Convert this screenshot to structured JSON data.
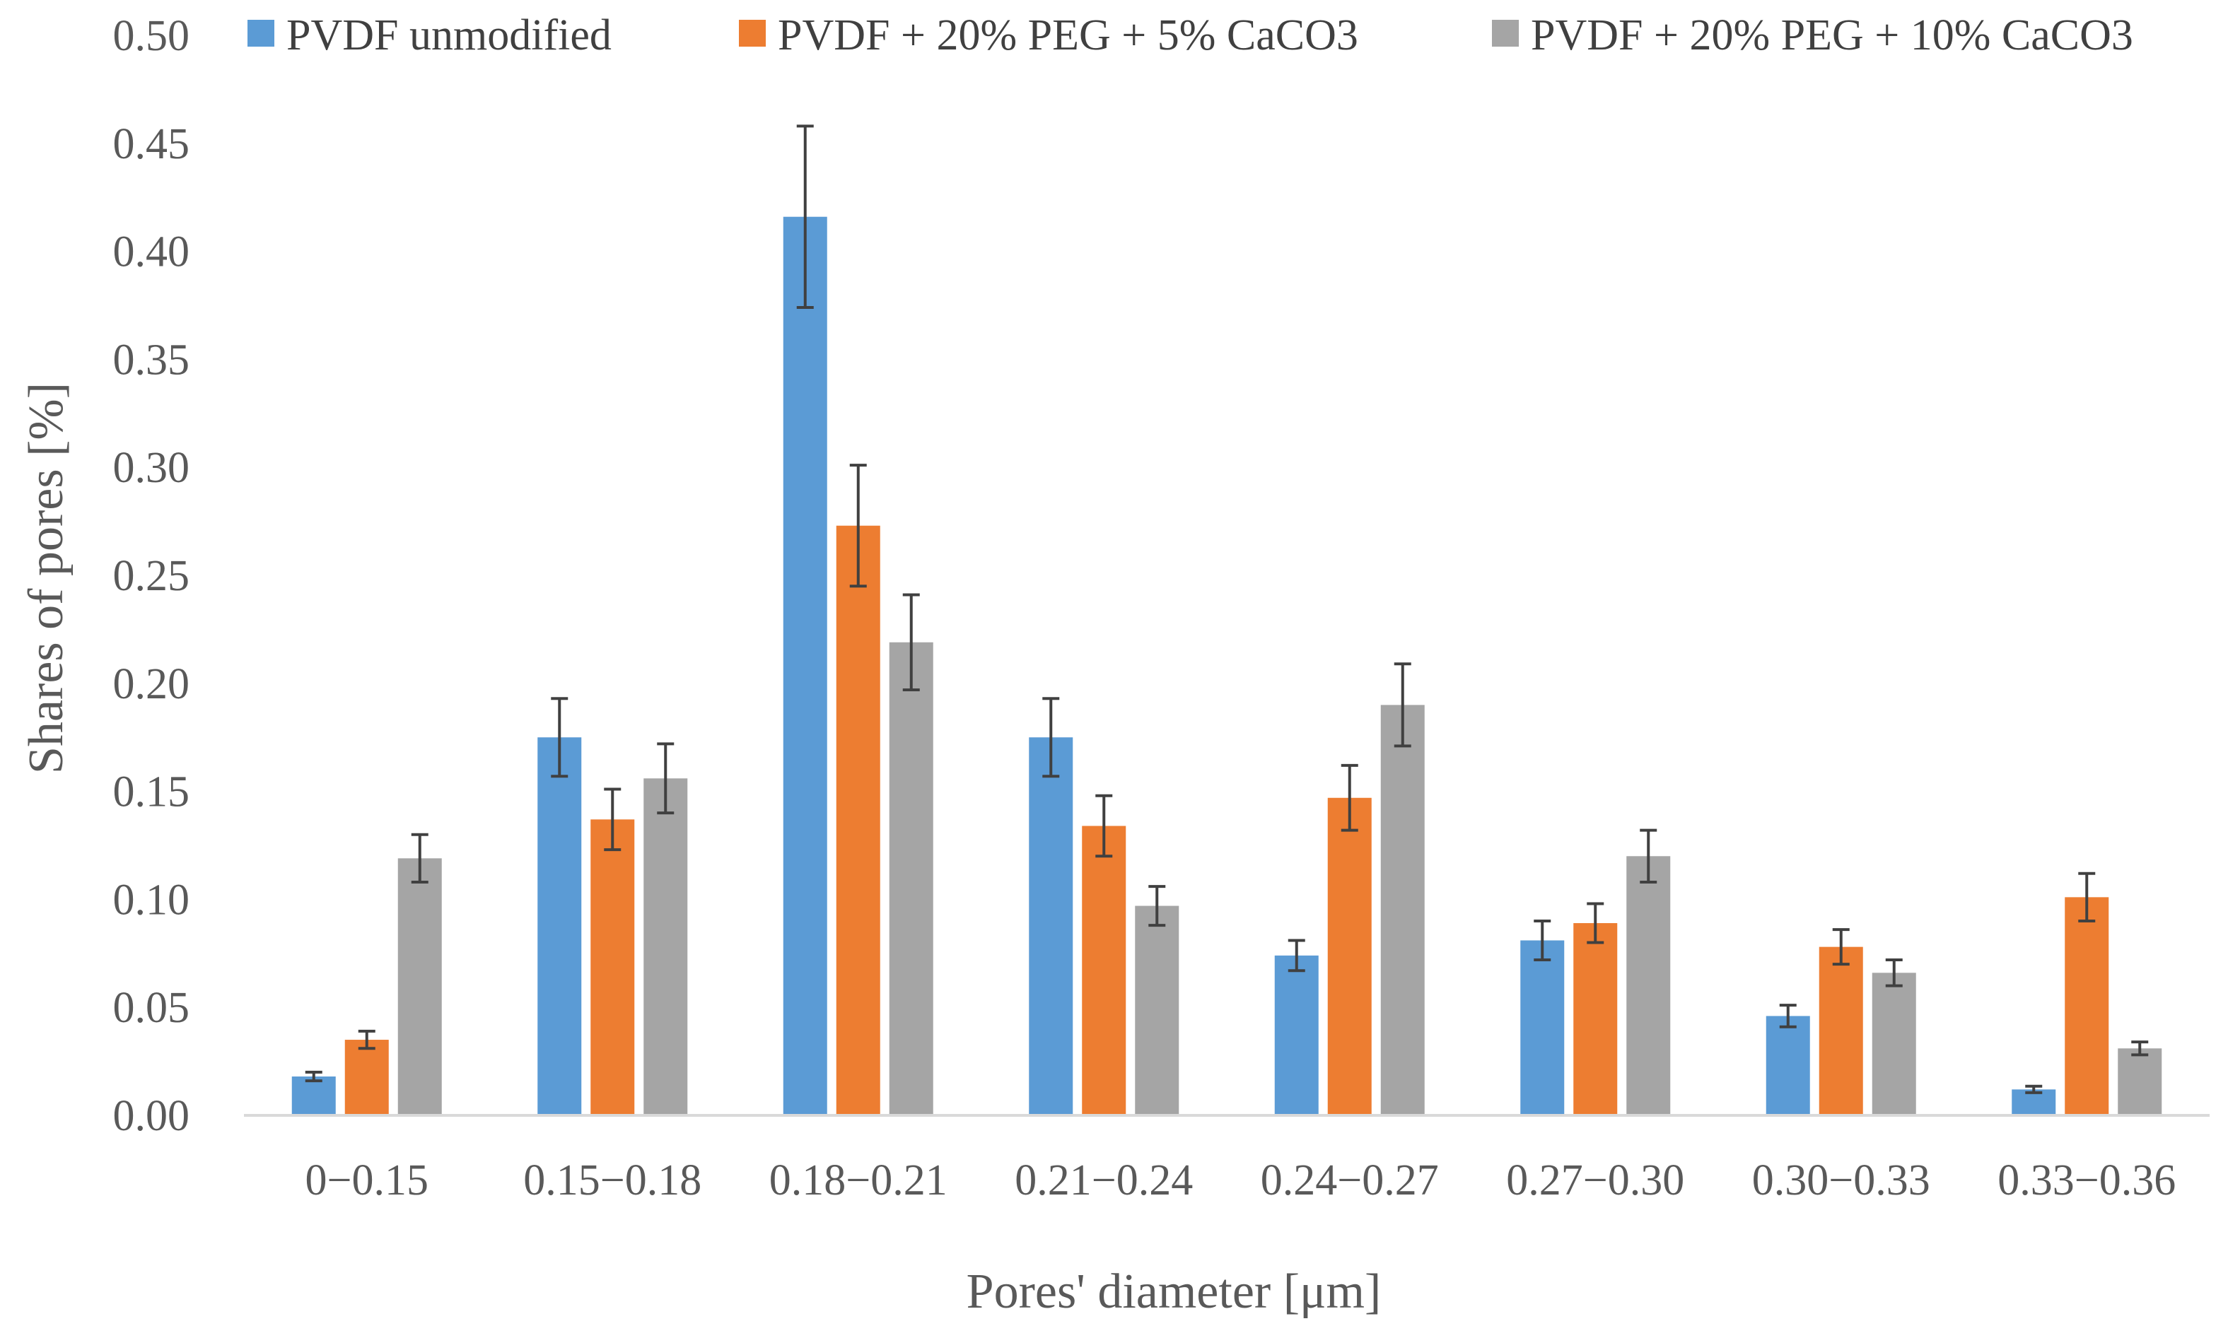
{
  "chart_data": {
    "type": "bar",
    "title": "",
    "xlabel": "Pores' diameter [μm]",
    "ylabel": "Shares of pores [%]",
    "ylim": [
      0,
      0.5
    ],
    "yticks": [
      "0.00",
      "0.05",
      "0.10",
      "0.15",
      "0.20",
      "0.25",
      "0.30",
      "0.35",
      "0.40",
      "0.45",
      "0.50"
    ],
    "grid": false,
    "legend_position": "top",
    "categories": [
      "0−0.15",
      "0.15−0.18",
      "0.18−0.21",
      "0.21−0.24",
      "0.24−0.27",
      "0.27−0.30",
      "0.30−0.33",
      "0.33−0.36"
    ],
    "series": [
      {
        "name": "PVDF unmodified",
        "color": "#5B9BD5",
        "values": [
          0.018,
          0.175,
          0.416,
          0.175,
          0.074,
          0.081,
          0.046,
          0.012
        ],
        "errors": [
          0.002,
          0.018,
          0.042,
          0.018,
          0.007,
          0.009,
          0.005,
          0.0015
        ]
      },
      {
        "name": "PVDF + 20% PEG + 5% CaCO3",
        "color": "#ED7D31",
        "values": [
          0.035,
          0.137,
          0.273,
          0.134,
          0.147,
          0.089,
          0.078,
          0.101
        ],
        "errors": [
          0.004,
          0.014,
          0.028,
          0.014,
          0.015,
          0.009,
          0.008,
          0.011
        ]
      },
      {
        "name": "PVDF + 20% PEG + 10% CaCO3",
        "color": "#A5A5A5",
        "values": [
          0.119,
          0.156,
          0.219,
          0.097,
          0.19,
          0.12,
          0.066,
          0.031
        ],
        "errors": [
          0.011,
          0.016,
          0.022,
          0.009,
          0.019,
          0.012,
          0.006,
          0.003
        ]
      }
    ],
    "error_bar_color": "#404040",
    "axis_color": "#D9D9D9"
  }
}
